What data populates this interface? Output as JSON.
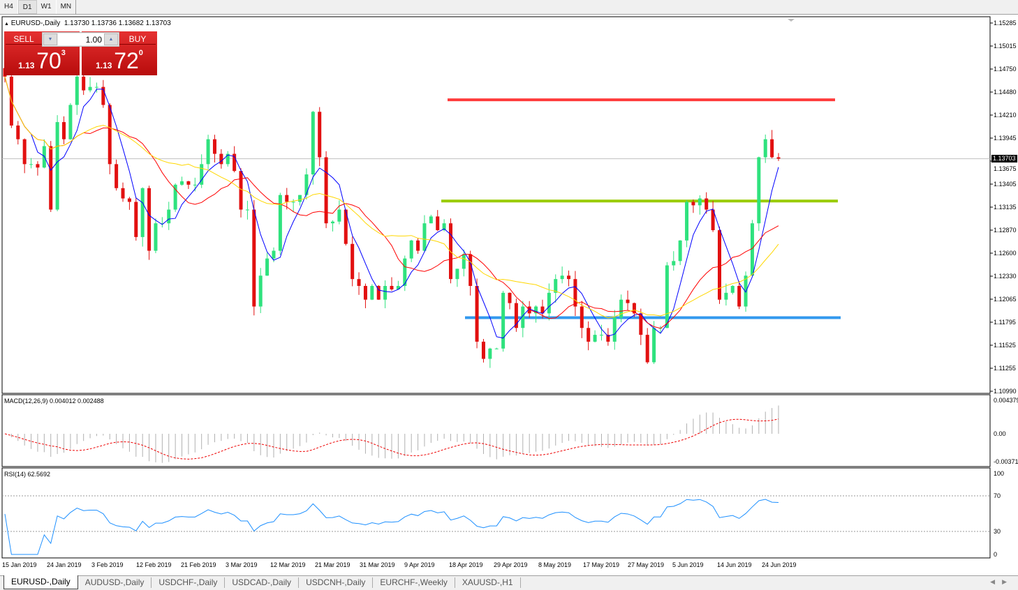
{
  "toolbar": {
    "timeframes": [
      "H4",
      "D1",
      "W1",
      "MN"
    ],
    "active": "D1"
  },
  "chart": {
    "title": "EURUSD-,Daily",
    "ohlc": "1.13730 1.13736 1.13682 1.13703",
    "current_price": "1.13703",
    "price_axis": [
      "1.15285",
      "1.15015",
      "1.14750",
      "1.14480",
      "1.14210",
      "1.13945",
      "1.13675",
      "1.13405",
      "1.13135",
      "1.12870",
      "1.12600",
      "1.12330",
      "1.12065",
      "1.11795",
      "1.11525",
      "1.11255",
      "1.10990"
    ],
    "date_axis": [
      "15 Jan 2019",
      "24 Jan 2019",
      "3 Feb 2019",
      "12 Feb 2019",
      "21 Feb 2019",
      "3 Mar 2019",
      "12 Mar 2019",
      "21 Mar 2019",
      "31 Mar 2019",
      "9 Apr 2019",
      "18 Apr 2019",
      "29 Apr 2019",
      "8 May 2019",
      "17 May 2019",
      "27 May 2019",
      "5 Jun 2019",
      "14 Jun 2019",
      "24 Jun 2019"
    ],
    "closes": [
      1.1466,
      1.1409,
      1.1393,
      1.1364,
      1.1364,
      1.136,
      1.1385,
      1.1311,
      1.1413,
      1.1393,
      1.1433,
      1.1466,
      1.145,
      1.1454,
      1.1454,
      1.1433,
      1.1364,
      1.1336,
      1.1324,
      1.132,
      1.1279,
      1.1336,
      1.1263,
      1.1295,
      1.1295,
      1.1311,
      1.134,
      1.1344,
      1.134,
      1.134,
      1.1364,
      1.1393,
      1.1376,
      1.1364,
      1.1376,
      1.1356,
      1.1311,
      1.1311,
      1.1198,
      1.1234,
      1.1254,
      1.1263,
      1.1328,
      1.132,
      1.132,
      1.1328,
      1.1352,
      1.1425,
      1.1372,
      1.1295,
      1.1297,
      1.1311,
      1.1271,
      1.123,
      1.1222,
      1.1206,
      1.1222,
      1.1206,
      1.1222,
      1.1218,
      1.1222,
      1.1254,
      1.1275,
      1.1263,
      1.1295,
      1.1303,
      1.1287,
      1.1295,
      1.123,
      1.1242,
      1.1259,
      1.1222,
      1.1157,
      1.1137,
      1.1149,
      1.1149,
      1.1214,
      1.1202,
      1.1173,
      1.1198,
      1.119,
      1.1198,
      1.119,
      1.1214,
      1.123,
      1.1234,
      1.123,
      1.1198,
      1.1173,
      1.1157,
      1.1165,
      1.1165,
      1.1157,
      1.1185,
      1.1206,
      1.1202,
      1.119,
      1.1165,
      1.1133,
      1.1173,
      1.1173,
      1.1246,
      1.1251,
      1.1275,
      1.132,
      1.1316,
      1.1324,
      1.1311,
      1.1287,
      1.1206,
      1.1214,
      1.1222,
      1.1198,
      1.1234,
      1.1295,
      1.1372,
      1.1393,
      1.1372,
      1.13703
    ],
    "levels": [
      {
        "price": 1.1439,
        "color": "#ff3b3b"
      },
      {
        "price": 1.1321,
        "color": "#99cc00"
      },
      {
        "price": 1.1185,
        "color": "#3399ee"
      }
    ],
    "colors": {
      "bull": "#2fe27e",
      "bear": "#e21010",
      "ma_fast": "#0000ff",
      "ma_mid": "#ff0000",
      "ma_slow": "#ffd700"
    }
  },
  "trade": {
    "sell_label": "SELL",
    "buy_label": "BUY",
    "lots": "1.00",
    "sell_prefix": "1.13",
    "sell_big": "70",
    "sell_sup": "3",
    "buy_prefix": "1.13",
    "buy_big": "72",
    "buy_sup": "0"
  },
  "macd": {
    "label": "MACD(12,26,9) 0.004012 0.002488",
    "axis": [
      "0.004379",
      "0.00",
      "-0.00371"
    ]
  },
  "rsi": {
    "label": "RSI(14) 62.5692",
    "axis": [
      "100",
      "70",
      "30",
      "0"
    ]
  },
  "tabs": [
    "EURUSD-,Daily",
    "AUDUSD-,Daily",
    "USDCHF-,Daily",
    "USDCAD-,Daily",
    "USDCNH-,Daily",
    "EURCHF-,Weekly",
    "XAUUSD-,H1"
  ]
}
